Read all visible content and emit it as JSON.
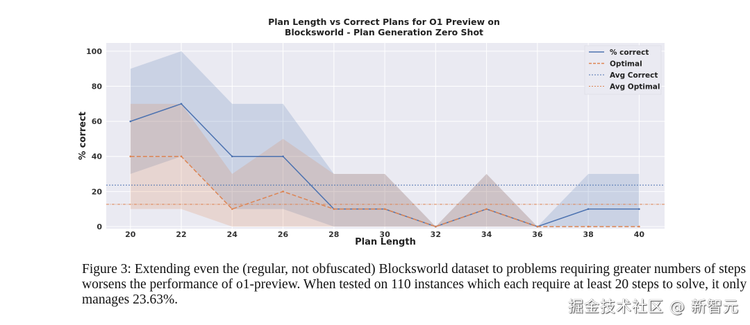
{
  "chart_data": {
    "type": "line",
    "title_lines": [
      "Plan Length vs Correct Plans for O1 Preview on",
      "Blocksworld - Plan Generation Zero Shot"
    ],
    "xlabel": "Plan Length",
    "ylabel": "% correct",
    "x": [
      20,
      22,
      24,
      26,
      28,
      30,
      32,
      34,
      36,
      38,
      40
    ],
    "xticks": [
      "20",
      "22",
      "24",
      "26",
      "28",
      "30",
      "32",
      "34",
      "36",
      "38",
      "40"
    ],
    "yticks": [
      "0",
      "20",
      "40",
      "60",
      "80",
      "100"
    ],
    "xlim": [
      19.05,
      41
    ],
    "ylim": [
      -1.2,
      104.7
    ],
    "grid": true,
    "legend_position": "top-right",
    "series": [
      {
        "name": "% correct",
        "style": "solid-marker",
        "color": "#4c72b0",
        "values": [
          60,
          70,
          40,
          40,
          10,
          10,
          0,
          10,
          0,
          10,
          10
        ],
        "band_low": [
          30,
          40,
          10,
          10,
          0,
          0,
          0,
          0,
          0,
          0,
          0
        ],
        "band_high": [
          90,
          100,
          70,
          70,
          30,
          30,
          0,
          30,
          0,
          30,
          30
        ]
      },
      {
        "name": "Optimal",
        "style": "dashed",
        "color": "#dd8452",
        "values": [
          40,
          40,
          10,
          20,
          10,
          10,
          0,
          10,
          0,
          0,
          0
        ],
        "band_low": [
          10,
          10,
          0,
          0,
          0,
          0,
          0,
          0,
          0,
          0,
          0
        ],
        "band_high": [
          70,
          70,
          30,
          50,
          30,
          30,
          0,
          30,
          0,
          0,
          0
        ]
      }
    ],
    "hlines": [
      {
        "name": "Avg Correct",
        "value": 23.63,
        "color": "#4c72b0"
      },
      {
        "name": "Avg Optimal",
        "value": 12.7,
        "color": "#dd8452"
      }
    ]
  },
  "caption": "Figure 3: Extending even the (regular, not obfuscated) Blocksworld dataset to problems requiring greater numbers of steps worsens the performance of o1-preview. When tested on 110 instances which each require at least 20 steps to solve, it only manages 23.63%.",
  "watermark": "掘金技术社区 @ 新智元"
}
